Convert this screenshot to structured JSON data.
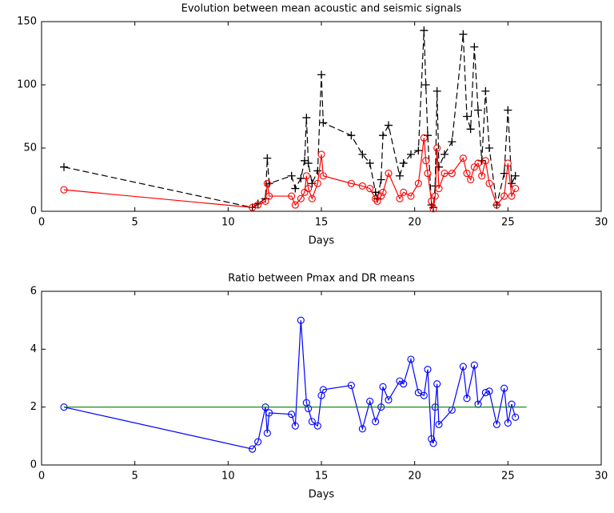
{
  "chart_data": [
    {
      "type": "line",
      "title": "Evolution between mean acoustic and seismic signals",
      "xlabel": "Days",
      "xlim": [
        0,
        30
      ],
      "ylim": [
        0,
        150
      ],
      "xticks": [
        0,
        5,
        10,
        15,
        20,
        25,
        30
      ],
      "yticks": [
        0,
        50,
        100,
        150
      ],
      "series": [
        {
          "color": "#000000",
          "marker": "+",
          "dashed": true,
          "x": [
            1.2,
            11.3,
            11.6,
            12.0,
            12.1,
            12.2,
            13.4,
            13.6,
            13.9,
            14.1,
            14.2,
            14.3,
            14.5,
            14.8,
            15.0,
            15.1,
            16.6,
            17.2,
            17.6,
            17.9,
            18.0,
            18.2,
            18.3,
            18.6,
            19.2,
            19.4,
            19.8,
            20.2,
            20.5,
            20.6,
            20.7,
            20.9,
            21.0,
            21.1,
            21.2,
            21.3,
            21.6,
            22.0,
            22.6,
            22.8,
            23.0,
            23.2,
            23.4,
            23.6,
            23.8,
            24.0,
            24.4,
            24.8,
            25.0,
            25.2,
            25.4
          ],
          "values": [
            35,
            3,
            6,
            10,
            42,
            22,
            28,
            18,
            26,
            40,
            74,
            38,
            22,
            32,
            108,
            70,
            60,
            45,
            38,
            15,
            10,
            25,
            60,
            68,
            28,
            38,
            45,
            48,
            143,
            100,
            60,
            5,
            3,
            20,
            95,
            35,
            45,
            55,
            140,
            75,
            65,
            130,
            80,
            40,
            95,
            50,
            5,
            30,
            80,
            22,
            28
          ]
        },
        {
          "color": "#ff0000",
          "marker": "o",
          "dashed": false,
          "x": [
            1.2,
            11.3,
            11.6,
            12.0,
            12.1,
            12.2,
            13.4,
            13.6,
            13.9,
            14.1,
            14.2,
            14.3,
            14.5,
            14.8,
            15.0,
            15.1,
            16.6,
            17.2,
            17.6,
            17.9,
            18.0,
            18.2,
            18.3,
            18.6,
            19.2,
            19.4,
            19.8,
            20.2,
            20.5,
            20.6,
            20.7,
            20.9,
            21.0,
            21.1,
            21.2,
            21.3,
            21.6,
            22.0,
            22.6,
            22.8,
            23.0,
            23.2,
            23.4,
            23.6,
            23.8,
            24.0,
            24.4,
            24.8,
            25.0,
            25.2,
            25.4
          ],
          "values": [
            17,
            3,
            5,
            8,
            22,
            12,
            12,
            5,
            10,
            15,
            28,
            18,
            10,
            22,
            45,
            28,
            22,
            20,
            18,
            10,
            8,
            12,
            15,
            30,
            10,
            15,
            12,
            22,
            58,
            40,
            30,
            8,
            2,
            12,
            50,
            18,
            30,
            30,
            42,
            30,
            25,
            35,
            38,
            28,
            40,
            22,
            5,
            12,
            38,
            12,
            18
          ]
        }
      ]
    },
    {
      "type": "line",
      "title": "Ratio between Pmax and DR means",
      "xlabel": "Days",
      "xlim": [
        0,
        30
      ],
      "ylim": [
        0,
        6
      ],
      "xticks": [
        0,
        5,
        10,
        15,
        20,
        25,
        30
      ],
      "yticks": [
        0,
        2,
        4,
        6
      ],
      "series": [
        {
          "color": "#0000ff",
          "marker": "o",
          "dashed": false,
          "x": [
            1.2,
            11.3,
            11.6,
            12.0,
            12.1,
            12.2,
            13.4,
            13.6,
            13.9,
            14.2,
            14.3,
            14.5,
            14.8,
            15.0,
            15.1,
            16.6,
            17.2,
            17.6,
            17.9,
            18.2,
            18.3,
            18.6,
            19.2,
            19.4,
            19.8,
            20.2,
            20.5,
            20.7,
            20.9,
            21.0,
            21.1,
            21.2,
            21.3,
            22.0,
            22.6,
            22.8,
            23.2,
            23.4,
            23.8,
            24.0,
            24.4,
            24.8,
            25.0,
            25.2,
            25.4
          ],
          "values": [
            2.0,
            0.55,
            0.8,
            2.0,
            1.1,
            1.8,
            1.75,
            1.35,
            5.0,
            2.15,
            1.95,
            1.5,
            1.35,
            2.4,
            2.6,
            2.75,
            1.25,
            2.2,
            1.5,
            2.0,
            2.7,
            2.25,
            2.9,
            2.8,
            3.65,
            2.5,
            2.4,
            3.3,
            0.9,
            0.75,
            2.0,
            2.8,
            1.4,
            1.9,
            3.4,
            2.3,
            3.45,
            2.1,
            2.5,
            2.55,
            1.4,
            2.65,
            1.45,
            2.1,
            1.65
          ]
        },
        {
          "color": "#008000",
          "marker": "none",
          "dashed": false,
          "x": [
            1.2,
            26
          ],
          "values": [
            2,
            2
          ]
        }
      ]
    }
  ]
}
